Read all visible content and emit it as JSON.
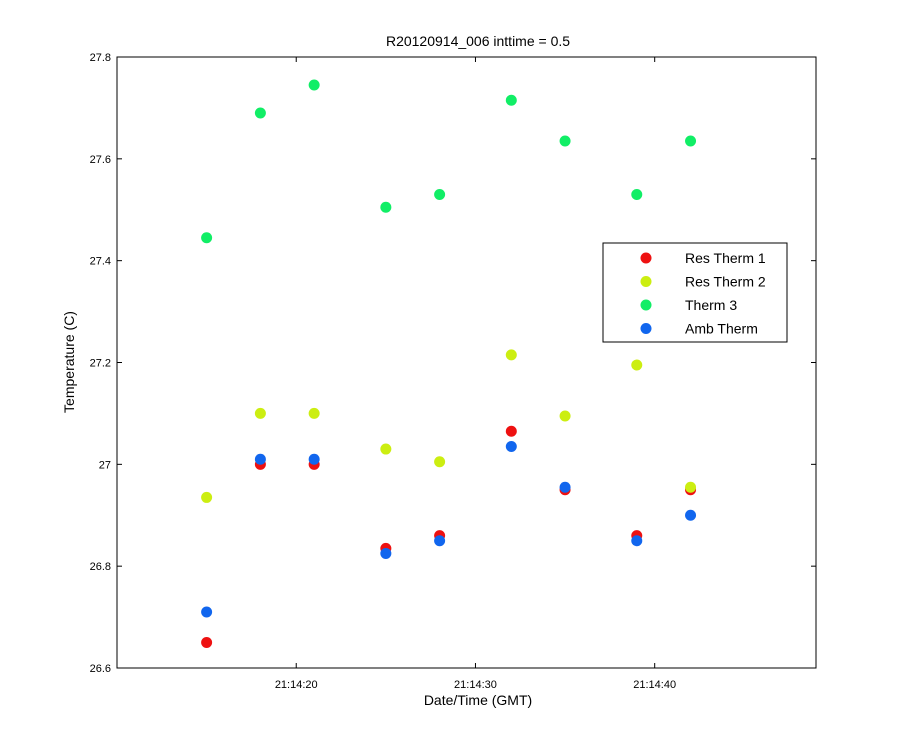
{
  "chart_data": {
    "type": "scatter",
    "title": "R20120914_006 inttime = 0.5",
    "xlabel": "Date/Time (GMT)",
    "ylabel": "Temperature (C)",
    "ylim": [
      26.6,
      27.8
    ],
    "xlim": [
      "21:14:10",
      "21:14:49"
    ],
    "x_tick_labels": [
      "21:14:20",
      "21:14:30",
      "21:14:40"
    ],
    "y_tick_labels": [
      "26.6",
      "26.8",
      "27",
      "27.2",
      "27.4",
      "27.6",
      "27.8"
    ],
    "legend_position": "right",
    "x": [
      "21:14:15",
      "21:14:18",
      "21:14:21",
      "21:14:25",
      "21:14:28",
      "21:14:32",
      "21:14:35",
      "21:14:39",
      "21:14:42"
    ],
    "series": [
      {
        "name": "Res Therm 1",
        "color": "#ee1111",
        "values": [
          26.65,
          27.0,
          27.0,
          26.835,
          26.86,
          27.065,
          26.95,
          26.86,
          26.95
        ]
      },
      {
        "name": "Res Therm 2",
        "color": "#ccee11",
        "values": [
          26.935,
          27.1,
          27.1,
          27.03,
          27.005,
          27.215,
          27.095,
          27.195,
          26.955
        ]
      },
      {
        "name": "Therm 3",
        "color": "#11ee66",
        "values": [
          27.445,
          27.69,
          27.745,
          27.505,
          27.53,
          27.715,
          27.635,
          27.53,
          27.635
        ]
      },
      {
        "name": "Amb Therm",
        "color": "#1166ee",
        "values": [
          26.71,
          27.01,
          27.01,
          26.825,
          26.85,
          27.035,
          26.955,
          26.85,
          26.9
        ]
      }
    ]
  }
}
